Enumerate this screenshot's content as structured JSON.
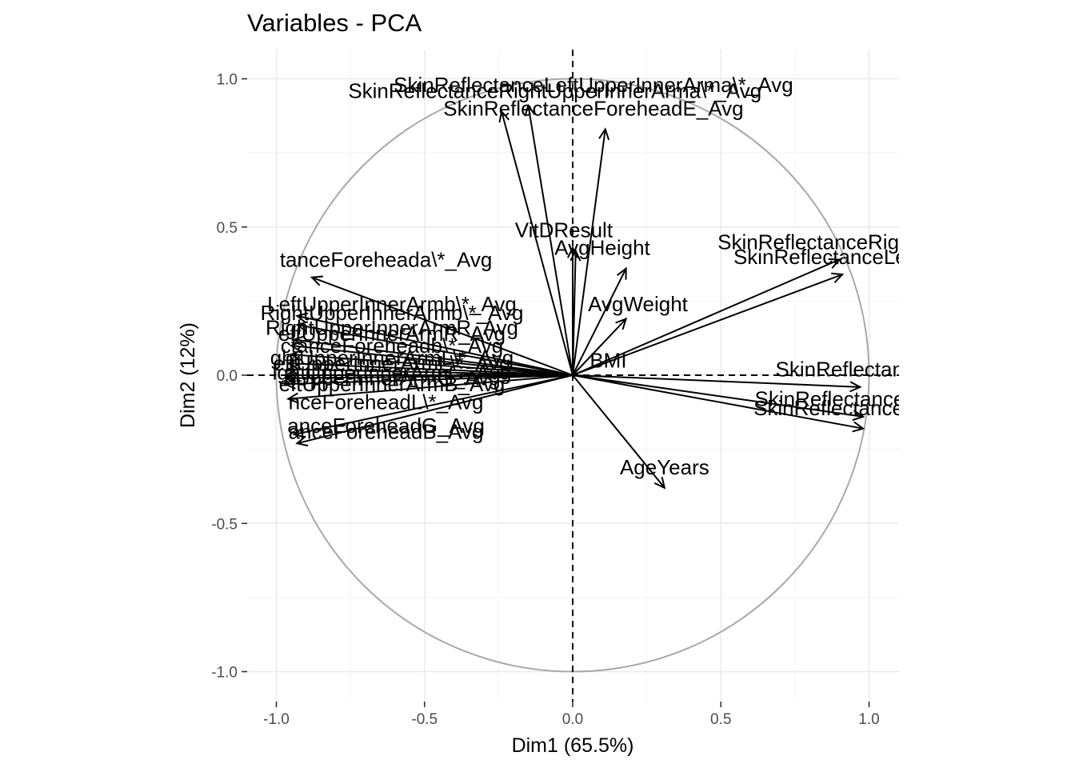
{
  "chart_data": {
    "type": "scatter",
    "subtype": "pca-variable-correlation-circle",
    "title": "Variables - PCA",
    "xlabel": "Dim1 (65.5%)",
    "ylabel": "Dim2 (12%)",
    "xlim": [
      -1.1,
      1.1
    ],
    "ylim": [
      -1.1,
      1.1
    ],
    "x_ticks": [
      -1.0,
      -0.5,
      0.0,
      0.5,
      1.0
    ],
    "y_ticks": [
      -1.0,
      -0.5,
      0.0,
      0.5,
      1.0
    ],
    "x_tick_labels": [
      "-1.0",
      "-0.5",
      "0.0",
      "0.5",
      "1.0"
    ],
    "y_tick_labels": [
      "-1.0",
      "-0.5",
      "0.0",
      "0.5",
      "1.0"
    ],
    "grid": true,
    "unit_circle": true,
    "reference_lines": {
      "x": 0,
      "y": 0,
      "style": "dashed"
    },
    "colors": {
      "arrows": "#000000",
      "circle": "#a9a9a9",
      "grid": "#ebebeb"
    },
    "variables": [
      {
        "name": "SkinReflectanceLeftUpperInnerArma\\*_Avg",
        "x": -0.15,
        "y": 0.91,
        "label_x": 0.07,
        "label_y": 0.98
      },
      {
        "name": "SkinReflectanceRightUpperInnerArma\\*_Avg",
        "x": -0.24,
        "y": 0.89,
        "label_x": -0.06,
        "label_y": 0.96
      },
      {
        "name": "SkinReflectanceForeheadE_Avg",
        "x": 0.11,
        "y": 0.83,
        "label_x": 0.07,
        "label_y": 0.9
      },
      {
        "name": "VitDResult",
        "x": 0.0,
        "y": 0.43,
        "label_x": -0.03,
        "label_y": 0.49
      },
      {
        "name": "AvgHeight",
        "x": 0.01,
        "y": 0.42,
        "label_x": 0.1,
        "label_y": 0.43
      },
      {
        "name": "SkinReflectanceRightUpperInnerArmE_Avg",
        "x": 0.9,
        "y": 0.39,
        "label_x": 0.92,
        "label_y": 0.45
      },
      {
        "name": "SkinReflectanceLeftUpperInnerArmE_Avg",
        "x": 0.91,
        "y": 0.34,
        "label_x": 0.95,
        "label_y": 0.4
      },
      {
        "name": "AvgWeight",
        "x": 0.18,
        "y": 0.36,
        "label_x": 0.22,
        "label_y": 0.24
      },
      {
        "name": "BMI",
        "x": 0.18,
        "y": 0.19,
        "label_x": 0.12,
        "label_y": 0.05
      },
      {
        "name": "SkinReflectanceForeheadE_AvgX",
        "x": 0.97,
        "y": -0.04,
        "label_x": 1.01,
        "label_y": 0.02
      },
      {
        "name": "SkinReflectanceLeftUpperInnerArmL\\*_Avg",
        "x": 0.98,
        "y": -0.14,
        "label_x": 1.01,
        "label_y": -0.08
      },
      {
        "name": "SkinReflectanceRightUpperInnerArmL\\*_Avg",
        "x": 0.98,
        "y": -0.18,
        "label_x": 1.01,
        "label_y": -0.11
      },
      {
        "name": "AgeYears",
        "x": 0.31,
        "y": -0.38,
        "label_x": 0.31,
        "label_y": -0.31
      },
      {
        "name": "SkinReflectanceForeheada\\*_Avg",
        "x": -0.88,
        "y": 0.33,
        "label_x": -0.63,
        "label_y": 0.39
      },
      {
        "name": "SkinReflectanceLeftUpperInnerArmb\\*_Avg",
        "x": -0.93,
        "y": 0.2,
        "label_x": -0.61,
        "label_y": 0.24
      },
      {
        "name": "SkinReflectanceRightUpperInnerArmb\\*_Avg",
        "x": -0.93,
        "y": 0.17,
        "label_x": -0.61,
        "label_y": 0.21
      },
      {
        "name": "SkinReflectanceRightUpperInnerArmR_Avg",
        "x": -0.94,
        "y": 0.12,
        "label_x": -0.61,
        "label_y": 0.16
      },
      {
        "name": "SkinReflectanceLeftUpperInnerArmR_Avg",
        "x": -0.95,
        "y": 0.1,
        "label_x": -0.61,
        "label_y": 0.14
      },
      {
        "name": "SkinReflectanceForeheadb\\*_Avg",
        "x": -0.95,
        "y": 0.07,
        "label_x": -0.61,
        "label_y": 0.1
      },
      {
        "name": "SkinReflectanceLeftUpperInnerArmL\\*_AvgX",
        "x": -0.96,
        "y": 0.04,
        "label_x": -0.61,
        "label_y": 0.06
      },
      {
        "name": "SkinReflectanceRightUpperInnerArmL\\*_AvgX",
        "x": -0.96,
        "y": 0.02,
        "label_x": -0.61,
        "label_y": 0.04
      },
      {
        "name": "SkinReflectanceLeftUpperInnerArmG_Avg",
        "x": -0.97,
        "y": 0.0,
        "label_x": -0.61,
        "label_y": 0.01
      },
      {
        "name": "SkinReflectanceRightUpperInnerArmG_Avg",
        "x": -0.97,
        "y": -0.01,
        "label_x": -0.61,
        "label_y": -0.01
      },
      {
        "name": "SkinReflectanceLeftUpperInnerArmB_Avg",
        "x": -0.97,
        "y": -0.03,
        "label_x": -0.61,
        "label_y": -0.03
      },
      {
        "name": "SkinReflectanceForeheadL\\*_Avg",
        "x": -0.96,
        "y": -0.08,
        "label_x": -0.63,
        "label_y": -0.09
      },
      {
        "name": "SkinReflectanceForeheadG_Avg",
        "x": -0.94,
        "y": -0.2,
        "label_x": -0.63,
        "label_y": -0.17
      },
      {
        "name": "SkinReflectanceForeheadB_Avg",
        "x": -0.93,
        "y": -0.23,
        "label_x": -0.63,
        "label_y": -0.19
      }
    ],
    "visible_labels": [
      "SkinReflectanceLeftUpperInnerArma\\*_Avg",
      "SkinReflectanceRightUpperInnerArma\\*_Avg",
      "SkinReflectanceForeheadE_Avg",
      "VitDResult",
      "AvgHeight",
      "SkinReflectanceRightUpper",
      "SkinReflectanceLeftUpper",
      "AvgWeight",
      "BMI",
      "SkinReflectanceFore",
      "SkinReflectanceLeftUppe",
      "SkinReflectanceRightUpp",
      "AgeYears",
      "tanceForeheada\\*_Avg",
      "LeftUpperInnerArmb\\*_Avg",
      "RightUpperInnerArmb\\*_Avg",
      "RightUpperInnerArmR_Avg",
      "eftUpperInnerArmR_Avg",
      "ctanceForeheadb\\*_Avg",
      "ghtUpperInnerArmL\\*_Avg",
      "eftUpperInnerArmL\\*_Avg",
      "ightUpperInnerArmG_Avg",
      "ftUpperInnerArmG_Avg",
      "eftUpperInnerArmB_Avg",
      "nceForeheadL\\*_Avg",
      "anceForeheadG_Avg",
      "anceForeheadB_Avg"
    ]
  }
}
